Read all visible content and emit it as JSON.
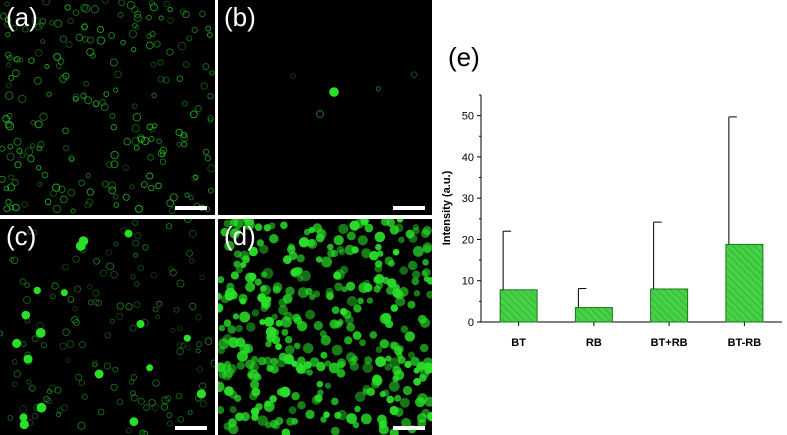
{
  "panels": [
    {
      "label": "(a)",
      "density": 220,
      "brightness": "dim",
      "big": 0
    },
    {
      "label": "(b)",
      "density": 4,
      "brightness": "dim",
      "big": 1
    },
    {
      "label": "(c)",
      "density": 140,
      "brightness": "mid",
      "big": 18
    },
    {
      "label": "(d)",
      "density": 380,
      "brightness": "bright",
      "big": 0
    }
  ],
  "colors": {
    "cell_green": "#29e029",
    "bar_fill": "#47d147",
    "bar_stroke": "#1a7a1a"
  },
  "chart_data": {
    "type": "bar",
    "panel_label": "(e)",
    "categories": [
      "BT",
      "RB",
      "BT+RB",
      "BT-RB"
    ],
    "values": [
      7.8,
      3.5,
      8.0,
      18.8
    ],
    "errors": [
      14.2,
      4.6,
      16.2,
      30.9
    ],
    "ylabel": "Intensity (a.u.)",
    "xlabel": "",
    "ylim": [
      0,
      55
    ],
    "yticks": [
      0,
      10,
      20,
      30,
      40,
      50
    ],
    "hatch": "diagonal"
  }
}
